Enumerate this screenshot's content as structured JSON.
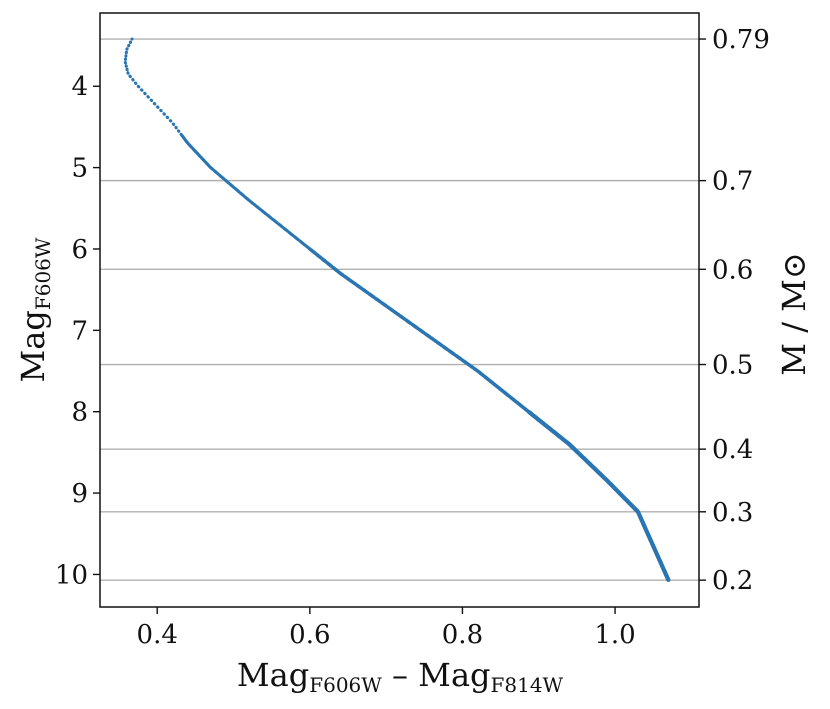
{
  "chart_data": {
    "type": "scatter",
    "title": "",
    "xlabel": {
      "parts": [
        {
          "text": "Mag",
          "sub": false
        },
        {
          "text": "F606W",
          "sub": true
        },
        {
          "text": " – ",
          "sub": false
        },
        {
          "text": "Mag",
          "sub": false
        },
        {
          "text": "F814W",
          "sub": true
        }
      ]
    },
    "ylabel": {
      "parts": [
        {
          "text": "Mag",
          "sub": false
        },
        {
          "text": "F606W",
          "sub": true
        }
      ]
    },
    "y2label": "M / M⊙",
    "xlim": [
      0.325,
      1.11
    ],
    "ylim": [
      10.4,
      3.1
    ],
    "y_inverted": true,
    "xticks": [
      {
        "value": 0.4,
        "label": "0.4"
      },
      {
        "value": 0.6,
        "label": "0.6"
      },
      {
        "value": 0.8,
        "label": "0.8"
      },
      {
        "value": 1.0,
        "label": "1.0"
      }
    ],
    "yticks": [
      {
        "value": 4,
        "label": "4"
      },
      {
        "value": 5,
        "label": "5"
      },
      {
        "value": 6,
        "label": "6"
      },
      {
        "value": 7,
        "label": "7"
      },
      {
        "value": 8,
        "label": "8"
      },
      {
        "value": 9,
        "label": "9"
      },
      {
        "value": 10,
        "label": "10"
      }
    ],
    "mass_ticks": [
      {
        "mag": 3.42,
        "label": "0.79"
      },
      {
        "mag": 5.16,
        "label": "0.7"
      },
      {
        "mag": 6.25,
        "label": "0.6"
      },
      {
        "mag": 7.42,
        "label": "0.5"
      },
      {
        "mag": 8.46,
        "label": "0.4"
      },
      {
        "mag": 9.23,
        "label": "0.3"
      },
      {
        "mag": 10.07,
        "label": "0.2"
      }
    ],
    "grid": "horizontal lines at mass ticks",
    "color": "#2a76b3",
    "series": [
      {
        "points": [
          [
            0.367,
            3.42
          ],
          [
            0.36,
            3.55
          ],
          [
            0.358,
            3.7
          ],
          [
            0.362,
            3.85
          ],
          [
            0.375,
            4.0
          ],
          [
            0.395,
            4.2
          ],
          [
            0.42,
            4.45
          ],
          [
            0.44,
            4.7
          ],
          [
            0.47,
            5.0
          ],
          [
            0.52,
            5.4
          ],
          [
            0.58,
            5.85
          ],
          [
            0.64,
            6.3
          ],
          [
            0.7,
            6.7
          ],
          [
            0.76,
            7.1
          ],
          [
            0.82,
            7.5
          ],
          [
            0.88,
            7.95
          ],
          [
            0.94,
            8.4
          ],
          [
            0.99,
            8.85
          ],
          [
            1.03,
            9.23
          ],
          [
            1.05,
            9.65
          ],
          [
            1.07,
            10.07
          ]
        ]
      }
    ]
  }
}
